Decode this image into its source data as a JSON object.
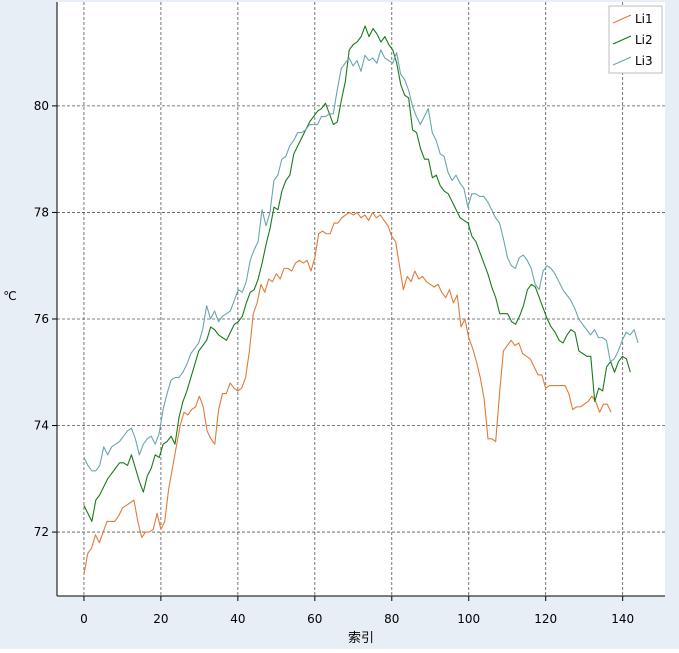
{
  "chart_data": {
    "type": "line",
    "title": "",
    "xlabel": "索引",
    "ylabel": "℃",
    "xlim": [
      -7,
      151
    ],
    "ylim": [
      70.8,
      81.95
    ],
    "xticks": [
      "0",
      "20",
      "40",
      "60",
      "80",
      "100",
      "120",
      "140"
    ],
    "yticks": [
      "72",
      "74",
      "76",
      "78",
      "80"
    ],
    "grid": true,
    "legend_position": "top-right",
    "colors": {
      "Li1": "#e07b39",
      "Li2": "#1a7a1a",
      "Li3": "#6aa6ad",
      "grid": "#555555",
      "plot_background": "#ffffff",
      "frame_background": "#e8eef5"
    },
    "series": [
      {
        "name": "Li1",
        "values": [
          71.2,
          71.6,
          71.7,
          71.95,
          71.8,
          72.0,
          72.2,
          72.2,
          72.2,
          72.3,
          72.45,
          72.5,
          72.55,
          72.6,
          72.2,
          71.9,
          72.0,
          72.0,
          72.05,
          72.35,
          72.05,
          72.2,
          72.8,
          73.2,
          73.6,
          74.0,
          74.25,
          74.2,
          74.3,
          74.35,
          74.55,
          74.35,
          73.9,
          73.75,
          73.65,
          74.3,
          74.6,
          74.6,
          74.8,
          74.7,
          74.65,
          74.7,
          74.9,
          75.4,
          76.1,
          76.3,
          76.65,
          76.5,
          76.75,
          76.7,
          76.85,
          76.75,
          76.95,
          76.95,
          76.9,
          77.05,
          77.1,
          77.05,
          77.1,
          76.9,
          77.15,
          77.6,
          77.65,
          77.6,
          77.6,
          77.8,
          77.8,
          77.9,
          77.95,
          78.0,
          77.95,
          78.0,
          77.9,
          77.95,
          77.85,
          78.0,
          77.9,
          77.95,
          77.85,
          77.75,
          77.55,
          77.45,
          77.0,
          76.55,
          76.8,
          76.7,
          76.9,
          76.75,
          76.8,
          76.7,
          76.65,
          76.6,
          76.65,
          76.5,
          76.4,
          76.55,
          76.3,
          76.45,
          75.85,
          76.0,
          75.65,
          75.45,
          75.2,
          74.9,
          74.5,
          73.75,
          73.75,
          73.7,
          74.6,
          75.4,
          75.5,
          75.6,
          75.5,
          75.55,
          75.35,
          75.3,
          75.25,
          75.1,
          74.95,
          74.95,
          74.7,
          74.75,
          74.75,
          74.75,
          74.75,
          74.75,
          74.6,
          74.3,
          74.35,
          74.35,
          74.4,
          74.45,
          74.55,
          74.45,
          74.25,
          74.4,
          74.4,
          74.25
        ],
        "x_end": 137
      },
      {
        "name": "Li2",
        "values": [
          72.5,
          72.35,
          72.2,
          72.6,
          72.7,
          72.85,
          73.0,
          73.1,
          73.2,
          73.3,
          73.3,
          73.25,
          73.45,
          73.2,
          72.95,
          72.75,
          73.05,
          73.2,
          73.45,
          73.4,
          73.65,
          73.7,
          73.8,
          73.65,
          74.15,
          74.45,
          74.65,
          74.9,
          75.15,
          75.4,
          75.5,
          75.6,
          75.85,
          75.8,
          75.7,
          75.65,
          75.6,
          75.75,
          75.9,
          75.95,
          76.05,
          76.3,
          76.5,
          76.55,
          76.75,
          77.05,
          77.4,
          77.7,
          78.1,
          78.05,
          78.4,
          78.6,
          78.7,
          79.1,
          79.25,
          79.4,
          79.55,
          79.7,
          79.8,
          79.9,
          79.95,
          80.05,
          79.85,
          79.65,
          79.7,
          80.1,
          80.45,
          81.05,
          81.15,
          81.2,
          81.3,
          81.5,
          81.3,
          81.45,
          81.35,
          81.2,
          81.3,
          81.15,
          81.05,
          80.8,
          80.4,
          80.2,
          80.15,
          79.55,
          79.5,
          79.2,
          79.0,
          79.0,
          78.65,
          78.7,
          78.5,
          78.4,
          78.35,
          78.2,
          78.05,
          77.9,
          77.85,
          77.8,
          77.55,
          77.45,
          77.25,
          77.05,
          76.85,
          76.6,
          76.4,
          76.1,
          76.1,
          76.1,
          75.95,
          75.9,
          76.05,
          76.25,
          76.55,
          76.65,
          76.6,
          76.4,
          76.2,
          76.0,
          75.85,
          75.75,
          75.6,
          75.55,
          75.7,
          75.8,
          75.75,
          75.4,
          75.35,
          75.3,
          75.3,
          74.45,
          74.7,
          74.65,
          75.1,
          75.2,
          75.0,
          75.2,
          75.3,
          75.25,
          75.0
        ],
        "x_end": 142
      },
      {
        "name": "Li3",
        "values": [
          73.4,
          73.25,
          73.15,
          73.15,
          73.25,
          73.6,
          73.45,
          73.6,
          73.65,
          73.7,
          73.8,
          73.9,
          73.95,
          73.75,
          73.45,
          73.65,
          73.75,
          73.8,
          73.65,
          73.85,
          74.3,
          74.6,
          74.85,
          74.9,
          74.9,
          75.0,
          75.15,
          75.35,
          75.45,
          75.55,
          75.8,
          76.25,
          76.0,
          76.15,
          75.95,
          76.05,
          76.1,
          76.15,
          76.35,
          76.55,
          76.5,
          76.7,
          77.1,
          77.3,
          77.45,
          78.05,
          77.75,
          78.0,
          78.6,
          78.7,
          79.0,
          79.05,
          79.25,
          79.35,
          79.5,
          79.5,
          79.55,
          79.65,
          79.65,
          79.65,
          79.8,
          79.8,
          79.85,
          79.85,
          80.3,
          80.7,
          80.8,
          80.9,
          80.75,
          80.85,
          80.65,
          80.95,
          80.85,
          80.9,
          80.8,
          81.05,
          80.9,
          80.85,
          80.8,
          81.0,
          80.6,
          80.5,
          80.3,
          80.0,
          79.8,
          79.65,
          79.8,
          79.95,
          79.5,
          79.35,
          79.1,
          79.05,
          78.75,
          78.6,
          78.7,
          78.55,
          78.45,
          78.1,
          78.35,
          78.35,
          78.3,
          78.3,
          78.2,
          78.05,
          77.9,
          77.8,
          77.5,
          77.15,
          77.0,
          76.95,
          77.15,
          77.2,
          77.1,
          76.95,
          76.65,
          76.55,
          76.9,
          77.0,
          76.95,
          76.85,
          76.7,
          76.55,
          76.45,
          76.35,
          76.2,
          76.0,
          75.9,
          75.8,
          75.7,
          75.8,
          75.65,
          75.65,
          75.6,
          75.2,
          75.25,
          75.4,
          75.6,
          75.75,
          75.7,
          75.8,
          75.55
        ],
        "x_end": 144
      }
    ]
  }
}
